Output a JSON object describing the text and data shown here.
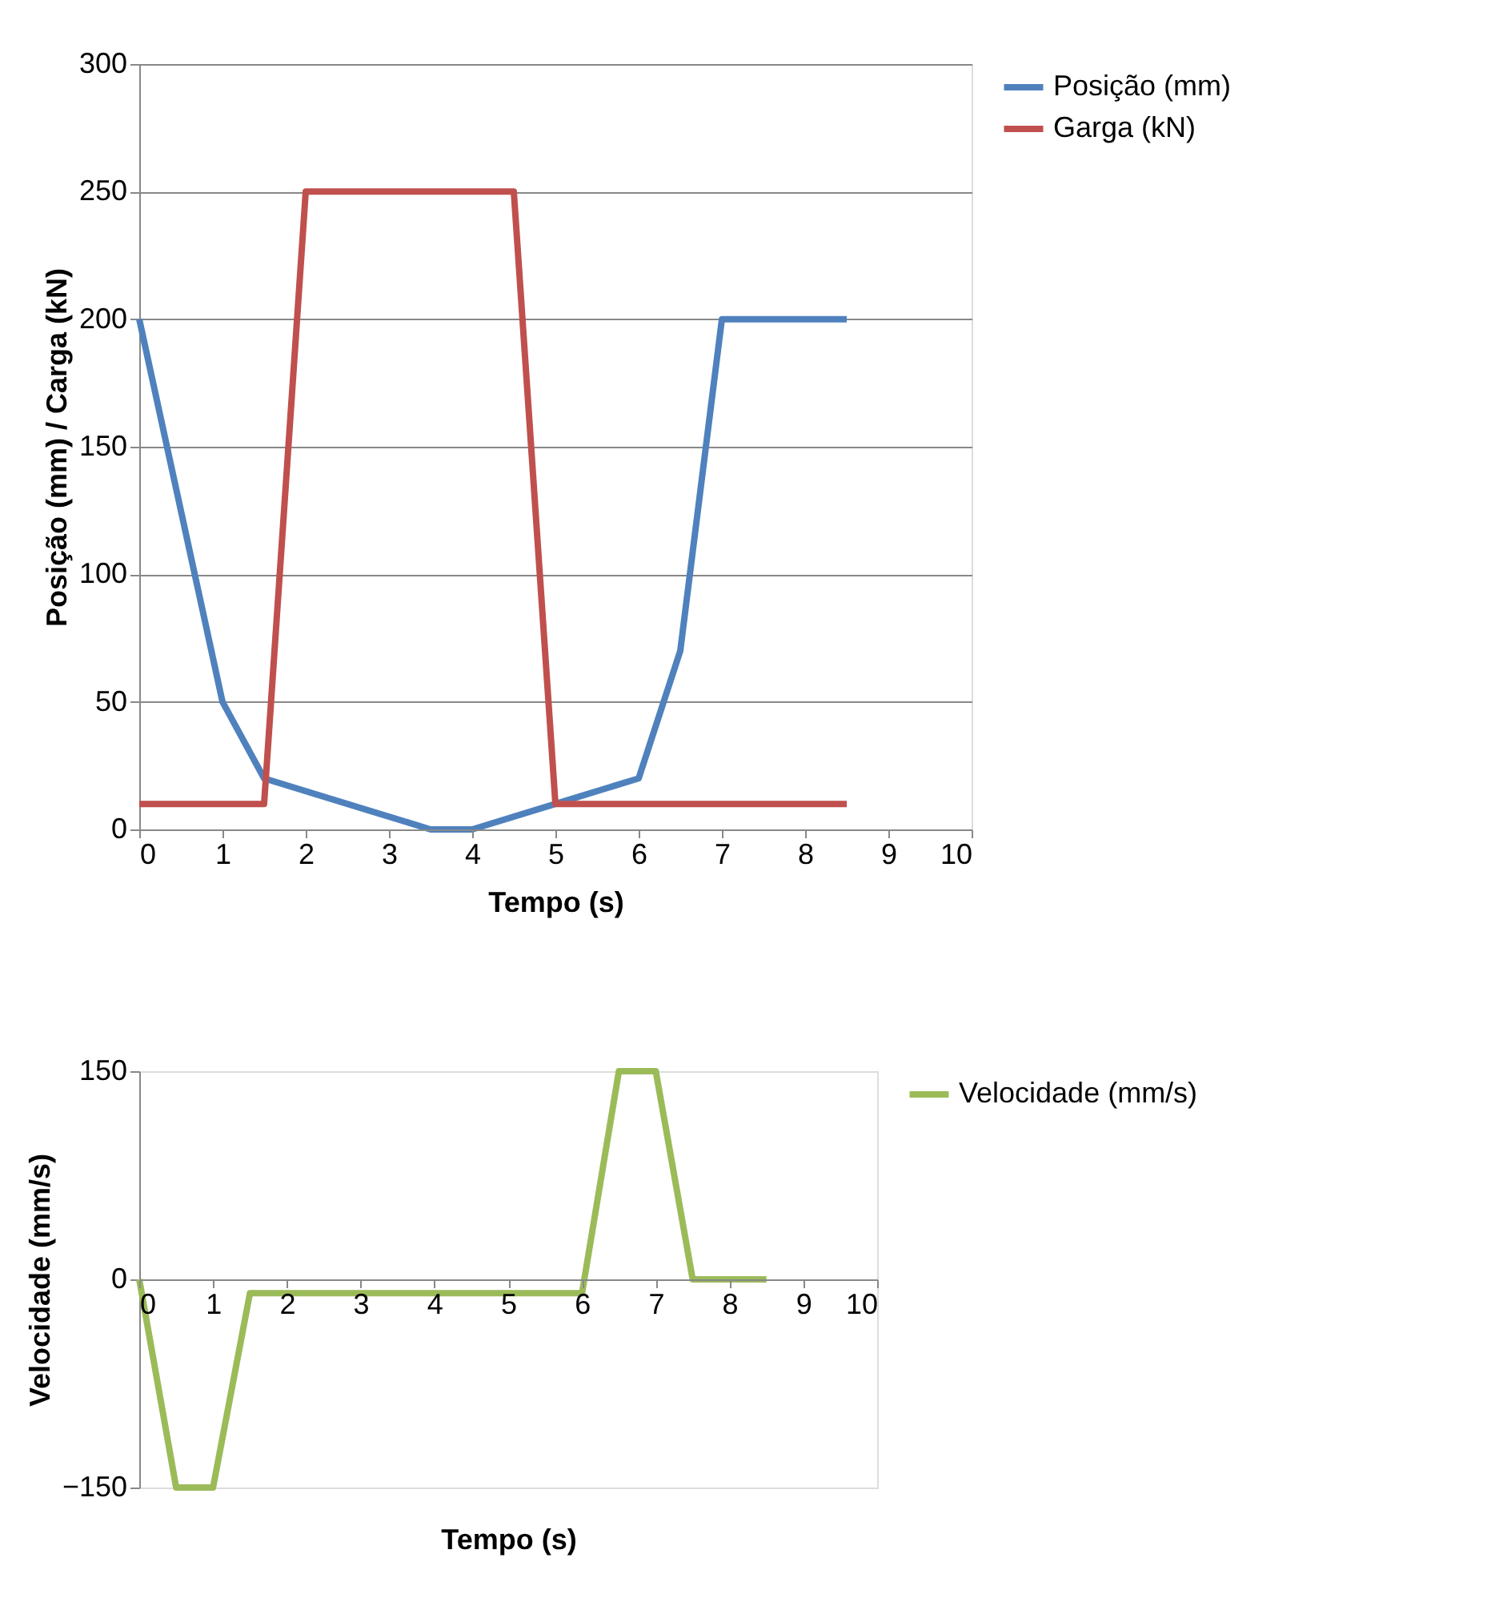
{
  "chart_data": [
    {
      "type": "line",
      "xlabel": "Tempo (s)",
      "ylabel": "Posição (mm) / Carga (kN)",
      "xlim": [
        0,
        10
      ],
      "xticks": [
        0,
        1,
        2,
        3,
        4,
        5,
        6,
        7,
        8,
        9,
        10
      ],
      "ylim": [
        0,
        300
      ],
      "yticks": [
        0,
        50,
        100,
        150,
        200,
        250,
        300
      ],
      "grid": "y",
      "legend": "right",
      "line_style": "solid",
      "series": [
        {
          "name": "Posição (mm)",
          "color": "#4f81bd",
          "x": [
            0,
            1,
            1.5,
            3.5,
            4,
            5,
            6,
            6.5,
            7,
            8.5
          ],
          "values": [
            200,
            50,
            20,
            0,
            0,
            10,
            20,
            70,
            200,
            200
          ]
        },
        {
          "name": "Garga (kN)",
          "color": "#c0504d",
          "x": [
            0,
            1.5,
            2,
            4.5,
            5,
            8.5
          ],
          "values": [
            10,
            10,
            250,
            250,
            10,
            10
          ]
        }
      ]
    },
    {
      "type": "line",
      "xlabel": "Tempo (s)",
      "ylabel": "Velocidade (mm/s)",
      "xlim": [
        0,
        10
      ],
      "xticks": [
        0,
        1,
        2,
        3,
        4,
        5,
        6,
        7,
        8,
        9,
        10
      ],
      "ylim": [
        -150,
        150
      ],
      "yticks": [
        -150,
        0,
        150
      ],
      "legend": "right",
      "line_style": "solid",
      "series": [
        {
          "name": "Velocidade (mm/s)",
          "color": "#9bbb59",
          "x": [
            0,
            0.5,
            1,
            1.5,
            6,
            6.5,
            7,
            7.5,
            8.5
          ],
          "values": [
            0,
            -150,
            -150,
            -10,
            -10,
            150,
            150,
            0,
            0
          ]
        }
      ]
    }
  ]
}
